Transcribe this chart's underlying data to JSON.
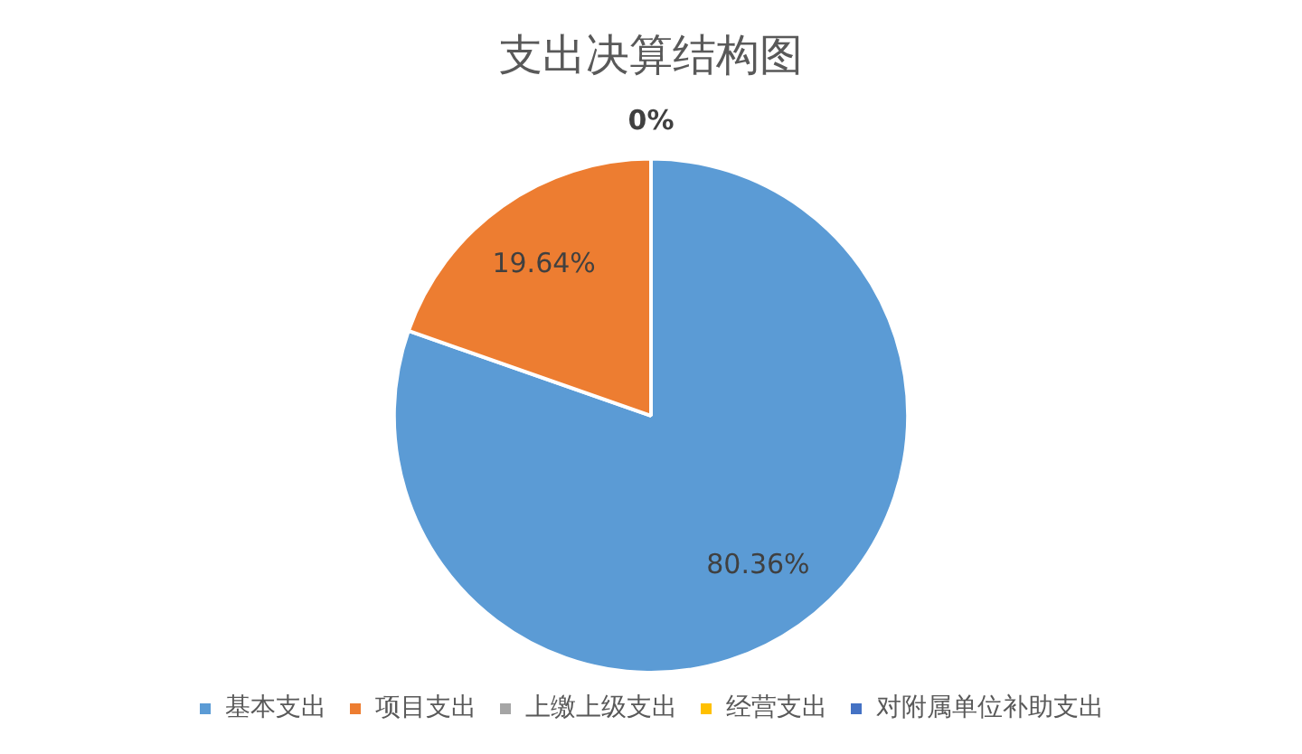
{
  "chart_data": {
    "type": "pie",
    "title": "支出决算结构图",
    "categories": [
      "基本支出",
      "项目支出",
      "上缴上级支出",
      "经营支出",
      "对附属单位补助支出"
    ],
    "values": [
      80.36,
      19.64,
      0,
      0,
      0
    ],
    "colors": [
      "#5b9bd5",
      "#ed7d31",
      "#a5a5a5",
      "#ffc000",
      "#4472c4"
    ],
    "value_labels": [
      "80.36%",
      "19.64%",
      "0%",
      null,
      null
    ],
    "legend": "bottom"
  }
}
